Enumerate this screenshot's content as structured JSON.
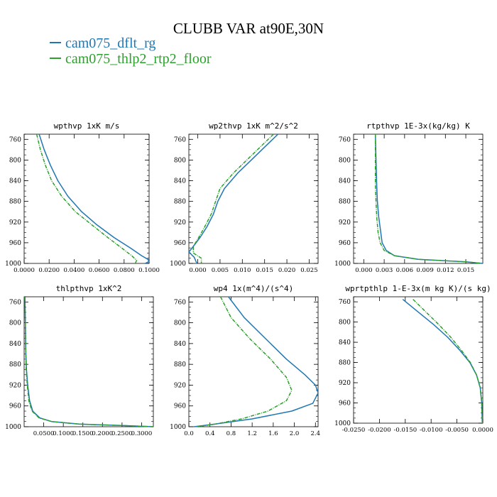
{
  "figure_title": "CLUBB VAR at90E,30N",
  "legend": [
    {
      "label": "cam075_dflt_rg",
      "color": "#1f77b4"
    },
    {
      "label": "cam075_thlp2_rtp2_floor",
      "color": "#2ca02c"
    }
  ],
  "chart_data": [
    {
      "type": "line",
      "title": "wpthvp  1xK m/s",
      "ylim": [
        1000,
        750
      ],
      "yticks": [
        760,
        800,
        840,
        880,
        920,
        960,
        1000
      ],
      "xlim": [
        0,
        0.1
      ],
      "xticks": [
        0,
        0.02,
        0.04,
        0.06,
        0.08,
        0.1
      ],
      "xticklabels": [
        "0.0000",
        "0.0200",
        "0.0400",
        "0.0600",
        "0.0800",
        "0.1000"
      ],
      "series": [
        {
          "name": "cam075_dflt_rg",
          "color": "#1f77b4",
          "style": "solid",
          "x": [
            0.012,
            0.016,
            0.021,
            0.027,
            0.035,
            0.046,
            0.058,
            0.072,
            0.085,
            0.094,
            0.099,
            0.1,
            0.097
          ],
          "y": [
            750,
            780,
            810,
            840,
            870,
            900,
            925,
            950,
            970,
            985,
            992,
            996,
            1000
          ]
        },
        {
          "name": "cam075_thlp2_rtp2_floor",
          "color": "#2ca02c",
          "style": "dashdot",
          "x": [
            0.01,
            0.013,
            0.017,
            0.022,
            0.03,
            0.041,
            0.054,
            0.067,
            0.078,
            0.086,
            0.09,
            0.089
          ],
          "y": [
            750,
            780,
            810,
            840,
            870,
            900,
            925,
            950,
            970,
            985,
            994,
            1000
          ]
        }
      ]
    },
    {
      "type": "line",
      "title": "wp2thvp  1xK m^2/s^2",
      "ylim": [
        1000,
        750
      ],
      "yticks": [
        760,
        800,
        840,
        880,
        920,
        960,
        1000
      ],
      "xlim": [
        -0.002,
        0.027
      ],
      "xticks": [
        0,
        0.005,
        0.01,
        0.015,
        0.02,
        0.025
      ],
      "xticklabels": [
        "0.000",
        "0.005",
        "0.010",
        "0.015",
        "0.020",
        "0.025"
      ],
      "series": [
        {
          "name": "cam075_dflt_rg",
          "color": "#1f77b4",
          "style": "solid",
          "x": [
            0.018,
            0.015,
            0.012,
            0.009,
            0.006,
            0.0045,
            0.0035,
            0.002,
            0.0005,
            -0.001,
            -0.002,
            -0.0008,
            -0.0002
          ],
          "y": [
            750,
            775,
            800,
            825,
            855,
            880,
            905,
            930,
            950,
            967,
            978,
            988,
            1000
          ]
        },
        {
          "name": "cam075_thlp2_rtp2_floor",
          "color": "#2ca02c",
          "style": "dashdot",
          "x": [
            0.017,
            0.014,
            0.011,
            0.008,
            0.005,
            0.004,
            0.003,
            0.0015,
            0.0002,
            -0.001,
            -0.001,
            0.0008,
            0.0008
          ],
          "y": [
            750,
            775,
            800,
            825,
            855,
            880,
            905,
            930,
            950,
            967,
            980,
            990,
            1000
          ]
        }
      ]
    },
    {
      "type": "line",
      "title": "rtpthvp  1E-3x(kg/kg) K",
      "ylim": [
        1000,
        750
      ],
      "yticks": [
        760,
        800,
        840,
        880,
        920,
        960,
        1000
      ],
      "xlim": [
        -0.0015,
        0.0175
      ],
      "xticks": [
        0,
        0.003,
        0.006,
        0.009,
        0.012,
        0.015
      ],
      "xticklabels": [
        "0.000",
        "0.003",
        "0.006",
        "0.009",
        "0.012",
        "0.015"
      ],
      "series": [
        {
          "name": "cam075_dflt_rg",
          "color": "#1f77b4",
          "style": "solid",
          "x": [
            0.0017,
            0.0018,
            0.0019,
            0.002,
            0.0022,
            0.0025,
            0.0027,
            0.0033,
            0.0045,
            0.008,
            0.015,
            0.0175
          ],
          "y": [
            750,
            800,
            850,
            880,
            910,
            940,
            960,
            975,
            985,
            992,
            997,
            1000
          ]
        },
        {
          "name": "cam075_thlp2_rtp2_floor",
          "color": "#2ca02c",
          "style": "dashdot",
          "x": [
            0.0017,
            0.0017,
            0.0017,
            0.0018,
            0.0019,
            0.0021,
            0.0024,
            0.003,
            0.0045,
            0.008,
            0.015,
            0.0175
          ],
          "y": [
            750,
            800,
            850,
            880,
            910,
            940,
            960,
            975,
            985,
            992,
            997,
            1000
          ]
        }
      ]
    },
    {
      "type": "line",
      "title": "thlpthvp   1xK^2",
      "ylim": [
        1000,
        750
      ],
      "yticks": [
        760,
        800,
        840,
        880,
        920,
        960,
        1000
      ],
      "xlim": [
        0,
        0.33
      ],
      "xticks": [
        0.05,
        0.1,
        0.15,
        0.2,
        0.25,
        0.3
      ],
      "xticklabels": [
        "0.0500",
        "0.1000",
        "0.1500",
        "0.2000",
        "0.2500",
        "0.3000"
      ],
      "series": [
        {
          "name": "cam075_dflt_rg",
          "color": "#1f77b4",
          "style": "solid",
          "x": [
            0.002,
            0.003,
            0.004,
            0.006,
            0.009,
            0.014,
            0.022,
            0.04,
            0.07,
            0.14,
            0.26,
            0.33
          ],
          "y": [
            750,
            800,
            850,
            890,
            920,
            950,
            970,
            983,
            990,
            995,
            998,
            1000
          ]
        },
        {
          "name": "cam075_thlp2_rtp2_floor",
          "color": "#2ca02c",
          "style": "dashdot",
          "x": [
            0.002,
            0.003,
            0.004,
            0.005,
            0.008,
            0.012,
            0.02,
            0.038,
            0.07,
            0.14,
            0.26,
            0.33
          ],
          "y": [
            750,
            800,
            850,
            890,
            920,
            950,
            970,
            983,
            990,
            995,
            998,
            1000
          ]
        }
      ]
    },
    {
      "type": "line",
      "title": "wp4   1x(m^4)/(s^4)",
      "ylim": [
        1000,
        750
      ],
      "yticks": [
        760,
        800,
        840,
        880,
        920,
        960,
        1000
      ],
      "xlim": [
        0,
        2.45
      ],
      "xticks": [
        0,
        0.4,
        0.8,
        1.2,
        1.6,
        2,
        2.4
      ],
      "xticklabels": [
        "0.0",
        "0.4",
        "0.8",
        "1.2",
        "1.6",
        "2.0",
        "2.4"
      ],
      "series": [
        {
          "name": "cam075_dflt_rg",
          "color": "#1f77b4",
          "style": "solid",
          "x": [
            0.75,
            1.05,
            1.45,
            1.85,
            2.2,
            2.4,
            2.45,
            2.35,
            1.95,
            1.2,
            0.5,
            0.1
          ],
          "y": [
            750,
            790,
            830,
            870,
            900,
            920,
            935,
            955,
            970,
            985,
            995,
            1000
          ]
        },
        {
          "name": "cam075_thlp2_rtp2_floor",
          "color": "#2ca02c",
          "style": "dashdot",
          "x": [
            0.6,
            0.8,
            1.15,
            1.55,
            1.85,
            1.95,
            1.85,
            1.5,
            1.0,
            0.5,
            0.15
          ],
          "y": [
            750,
            790,
            830,
            870,
            905,
            930,
            950,
            970,
            985,
            995,
            1000
          ]
        }
      ]
    },
    {
      "type": "line",
      "title": "wprtpthlp  1-E-3x(m kg K)/(s kg)",
      "ylim": [
        1000,
        750
      ],
      "yticks": [
        760,
        800,
        840,
        880,
        920,
        960,
        1000
      ],
      "xlim": [
        -0.025,
        0
      ],
      "xticks": [
        -0.025,
        -0.02,
        -0.015,
        -0.01,
        -0.005,
        0
      ],
      "xticklabels": [
        "-0.0250",
        "-0.0200",
        "-0.0150",
        "-0.0100",
        "-0.0050",
        "0.0000"
      ],
      "series": [
        {
          "name": "cam075_dflt_rg",
          "color": "#1f77b4",
          "style": "solid",
          "x": [
            -0.0155,
            -0.0125,
            -0.0095,
            -0.0068,
            -0.0045,
            -0.0025,
            -0.0012,
            -0.0005,
            -0.0002,
            -0.0001
          ],
          "y": [
            755,
            780,
            805,
            830,
            855,
            880,
            905,
            930,
            960,
            1000
          ]
        },
        {
          "name": "cam075_thlp2_rtp2_floor",
          "color": "#2ca02c",
          "style": "dashdot",
          "x": [
            -0.0135,
            -0.011,
            -0.0085,
            -0.0062,
            -0.0042,
            -0.0024,
            -0.0012,
            -0.0005,
            -0.0002,
            -0.0001
          ],
          "y": [
            755,
            780,
            805,
            830,
            855,
            880,
            905,
            930,
            960,
            1000
          ]
        }
      ]
    }
  ]
}
